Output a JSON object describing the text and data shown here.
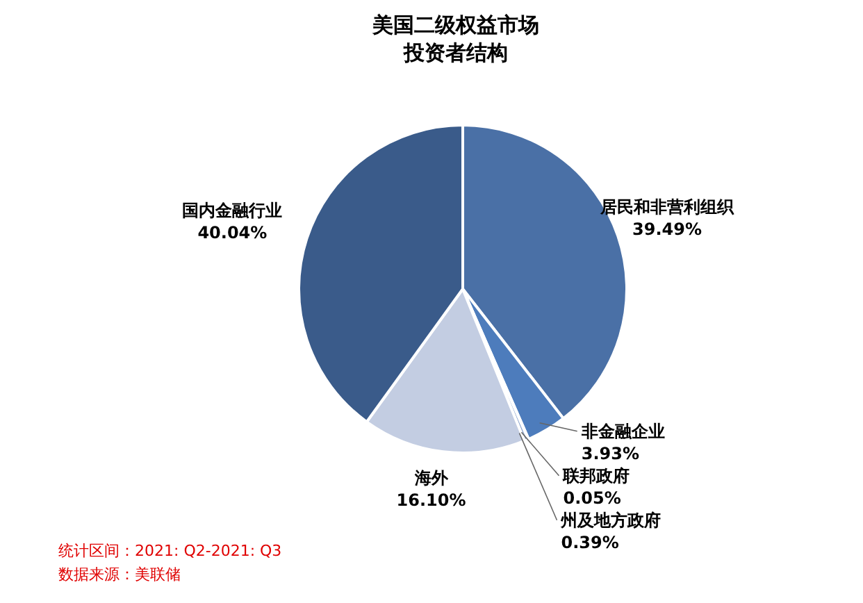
{
  "chart_data": {
    "type": "pie",
    "title": "美国二级权益市场投资者结构",
    "categories": [
      "居民和非营利组织",
      "非金融企业",
      "联邦政府",
      "州及地方政府",
      "海外",
      "国内金融行业"
    ],
    "values": [
      39.49,
      3.93,
      0.05,
      0.39,
      16.1,
      40.04
    ],
    "value_labels": [
      "39.49%",
      "3.93%",
      "0.05%",
      "0.39%",
      "16.10%",
      "40.04%"
    ],
    "colors": [
      "#4a70a6",
      "#4d7cbc",
      "#5a86c4",
      "#8aa3cc",
      "#c3cde2",
      "#3a5b8a"
    ],
    "annotations": [
      "统计区间：2021: Q2-2021: Q3",
      "数据来源：美联储"
    ]
  }
}
